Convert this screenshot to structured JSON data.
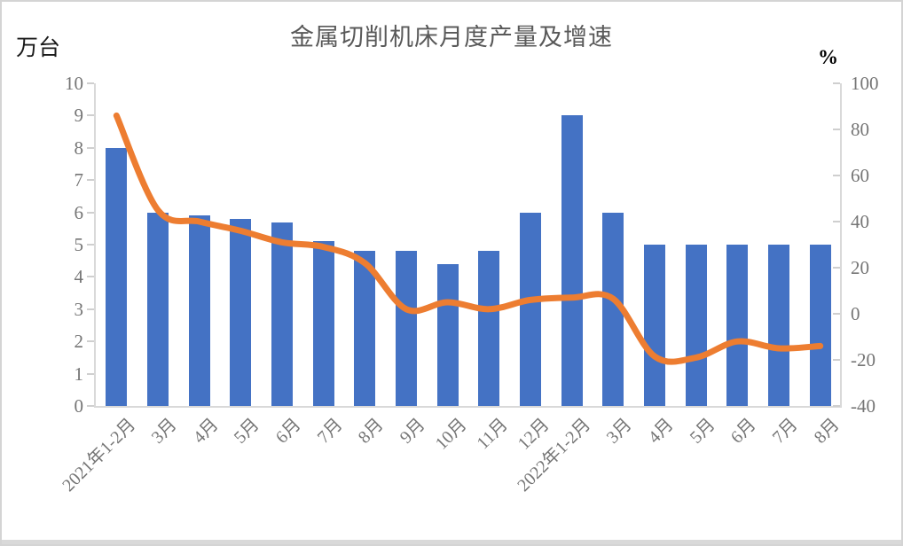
{
  "window": {
    "background": "#ffffff",
    "border_color": "#d4d4d4",
    "bottom_strip_color": "#d9d9d9"
  },
  "chart_data": {
    "type": "bar",
    "subtype": "bar-line-combo",
    "title": "金属切削机床月度产量及增速",
    "grid": false,
    "legend": "none",
    "categories": [
      "2021年1-2月",
      "3月",
      "4月",
      "5月",
      "6月",
      "7月",
      "8月",
      "9月",
      "10月",
      "11月",
      "12月",
      "2022年1-2月",
      "3月",
      "4月",
      "5月",
      "6月",
      "7月",
      "8月"
    ],
    "series": [
      {
        "id": "monthly-production-bars",
        "type": "bar",
        "axis": "left",
        "color": "#4472c4",
        "values": [
          8,
          6,
          5.9,
          5.8,
          5.7,
          5.1,
          4.8,
          4.8,
          4.4,
          4.8,
          6,
          9,
          6,
          5,
          5,
          5,
          5,
          5
        ]
      },
      {
        "id": "growth-rate-line",
        "type": "line",
        "axis": "right",
        "color": "#ed7d31",
        "smooth": true,
        "values": [
          86,
          45,
          40,
          36,
          31,
          29,
          22,
          2,
          5,
          2,
          6,
          7,
          6.5,
          -18.5,
          -19,
          -12,
          -15,
          -14
        ]
      }
    ],
    "left_axis": {
      "unit_label": "万台",
      "min": 0,
      "max": 10,
      "tick_step": 1,
      "tick_labels": [
        "0",
        "1",
        "2",
        "3",
        "4",
        "5",
        "6",
        "7",
        "8",
        "9",
        "10"
      ]
    },
    "right_axis": {
      "unit_label": "%",
      "min": -40,
      "max": 100,
      "tick_step": 20,
      "tick_labels": [
        "-40",
        "-20",
        "0",
        "20",
        "40",
        "60",
        "80",
        "100"
      ]
    },
    "styles": {
      "axis_line_color": "#d9d9d9",
      "tick_mark_color": "#cfcfcf",
      "tick_text_color": "#757575",
      "title_color": "#595959",
      "unit_text_color": "#1a1a1a"
    }
  }
}
